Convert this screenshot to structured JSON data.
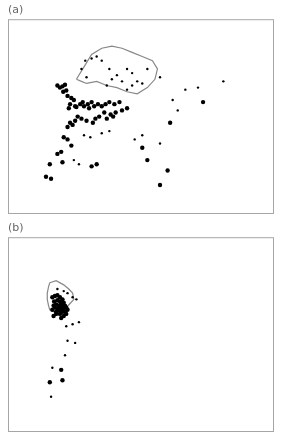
{
  "chart_data": [
    {
      "type": "scatter",
      "title": "(a)",
      "xlim": [
        -25,
        80
      ],
      "ylim": [
        25,
        72
      ],
      "xticks": [],
      "yticks": [],
      "grid": false,
      "tick_labels": false,
      "series": [
        {
          "type": "line",
          "color": "#888888",
          "line_style": "solid",
          "x": [
            2.0,
            5.0,
            8.0,
            12.0,
            16.0,
            20.0,
            24.0,
            28.0,
            32.0,
            34.0,
            33.0,
            30.0,
            26.0,
            22.0,
            18.0,
            14.0,
            10.0,
            6.0,
            4.0,
            2.0
          ],
          "values": [
            57.5,
            60.5,
            63.5,
            65.0,
            65.5,
            65.0,
            64.0,
            63.0,
            62.0,
            60.0,
            57.5,
            55.5,
            54.0,
            54.5,
            55.5,
            56.0,
            57.0,
            56.5,
            57.0,
            57.5
          ]
        },
        {
          "type": "scatter",
          "color": "#000000",
          "marker": "circle",
          "x": [
            -5.5,
            -4.5,
            -3.5,
            -2.5,
            -3.2,
            -2.0,
            -1.5,
            0.0,
            1.0,
            -0.5,
            1.5,
            -1.0,
            2.0,
            3.5,
            4.5,
            5.0,
            6.5,
            8.0,
            7.0,
            9.0,
            10.5,
            12.0,
            13.5,
            15.0,
            17.0,
            19.0,
            13.0,
            15.5,
            17.5,
            20.0,
            22.0,
            14.0,
            16.5,
            9.5,
            11.0,
            2.5,
            4.0,
            6.0,
            8.5,
            -0.5,
            1.5,
            -1.5,
            0.5,
            -3.0,
            -1.5,
            0.0,
            -4.0,
            -5.5,
            -3.5,
            -8.5,
            -10.0,
            -8.0,
            8.0,
            10.0,
            28.0,
            30.0,
            35.0,
            38.0,
            39.0,
            52.0
          ],
          "values": [
            56.0,
            55.5,
            55.8,
            56.2,
            54.5,
            54.8,
            53.5,
            53.0,
            52.5,
            51.5,
            51.0,
            50.5,
            50.8,
            51.5,
            52.0,
            51.0,
            51.5,
            52.0,
            50.5,
            51.0,
            51.5,
            51.0,
            51.5,
            52.0,
            51.5,
            52.0,
            49.5,
            49.0,
            49.5,
            50.0,
            50.5,
            48.0,
            48.5,
            48.0,
            48.5,
            48.5,
            48.0,
            47.5,
            47.0,
            47.0,
            47.5,
            46.0,
            46.5,
            43.5,
            43.0,
            41.5,
            40.0,
            39.5,
            37.5,
            37.0,
            34.0,
            33.5,
            36.5,
            37.0,
            41.0,
            38.0,
            32.0,
            35.5,
            47.0,
            52.0
          ]
        },
        {
          "type": "scatter",
          "color": "#000000",
          "marker": "circle",
          "x": [
            5.5,
            8.0,
            10.0,
            12.0,
            15.0,
            18.0,
            20.0,
            22.0,
            24.0,
            26.0,
            28.0,
            24.0,
            22.0,
            14.0,
            16.0,
            4.0,
            6.0,
            30.0,
            35.0,
            45.0,
            50.0,
            40.0,
            42.0,
            25.0,
            28.0,
            5.0,
            7.5,
            12.0,
            15.0,
            1.0,
            3.0,
            35.0,
            60.0
          ],
          "values": [
            62.0,
            62.5,
            63.0,
            62.0,
            60.0,
            58.5,
            57.0,
            55.0,
            56.0,
            57.0,
            56.5,
            59.0,
            60.0,
            56.0,
            57.5,
            60.0,
            58.0,
            60.0,
            58.0,
            55.0,
            55.5,
            52.5,
            50.0,
            43.0,
            44.0,
            44.0,
            43.5,
            44.5,
            45.0,
            38.0,
            37.0,
            42.0,
            57.0
          ]
        }
      ]
    },
    {
      "type": "scatter",
      "title": "(b)",
      "xlim": [
        -25,
        80
      ],
      "ylim": [
        25,
        72
      ],
      "xticks": [],
      "yticks": [],
      "grid": false,
      "tick_labels": false,
      "series": [
        {
          "type": "line",
          "color": "#888888",
          "line_style": "solid",
          "x": [
            -8.5,
            -6.0,
            -3.0,
            -1.0,
            0.5,
            1.0,
            -0.5,
            -2.0,
            -3.5,
            -5.0,
            -7.0,
            -8.5,
            -9.0,
            -9.5,
            -9.5,
            -9.0,
            -8.5
          ],
          "values": [
            61.0,
            61.5,
            60.5,
            59.5,
            58.5,
            57.0,
            56.0,
            55.0,
            54.5,
            54.5,
            54.0,
            54.5,
            55.5,
            57.0,
            58.5,
            60.0,
            61.0
          ]
        },
        {
          "type": "scatter",
          "color": "#000000",
          "marker": "circle",
          "x": [
            -7.5,
            -6.5,
            -5.5,
            -4.5,
            -6.8,
            -5.5,
            -4.5,
            -3.5,
            -7.0,
            -6.0,
            -5.0,
            -4.0,
            -3.0,
            -7.5,
            -6.5,
            -5.5,
            -4.5,
            -3.5,
            -2.5,
            -6.0,
            -5.0,
            -4.0,
            -3.0,
            -2.0,
            -7.0,
            -6.0,
            -4.5,
            -3.5,
            -2.5,
            -4.0,
            -3.0,
            -2.0,
            -1.5,
            -4.0,
            -3.5,
            -8.5
          ],
          "values": [
            57.5,
            57.8,
            58.0,
            57.5,
            56.5,
            56.8,
            56.5,
            57.0,
            55.5,
            55.8,
            55.5,
            56.0,
            56.2,
            54.5,
            55.0,
            54.8,
            55.0,
            55.3,
            55.5,
            54.0,
            54.3,
            54.5,
            54.8,
            55.0,
            53.0,
            53.5,
            53.5,
            54.0,
            54.0,
            52.5,
            53.0,
            53.5,
            54.5,
            40.0,
            37.5,
            37.0
          ]
        },
        {
          "type": "scatter",
          "color": "#000000",
          "marker": "circle",
          "x": [
            -5.5,
            -3.0,
            -1.5,
            0.5,
            2.0,
            -2.0,
            0.5,
            3.0,
            -1.5,
            1.5,
            -2.5,
            -7.5,
            -8.0
          ],
          "values": [
            59.5,
            59.0,
            58.5,
            57.5,
            57.0,
            50.5,
            51.0,
            51.5,
            47.0,
            46.5,
            43.5,
            40.5,
            33.5
          ]
        }
      ]
    }
  ]
}
